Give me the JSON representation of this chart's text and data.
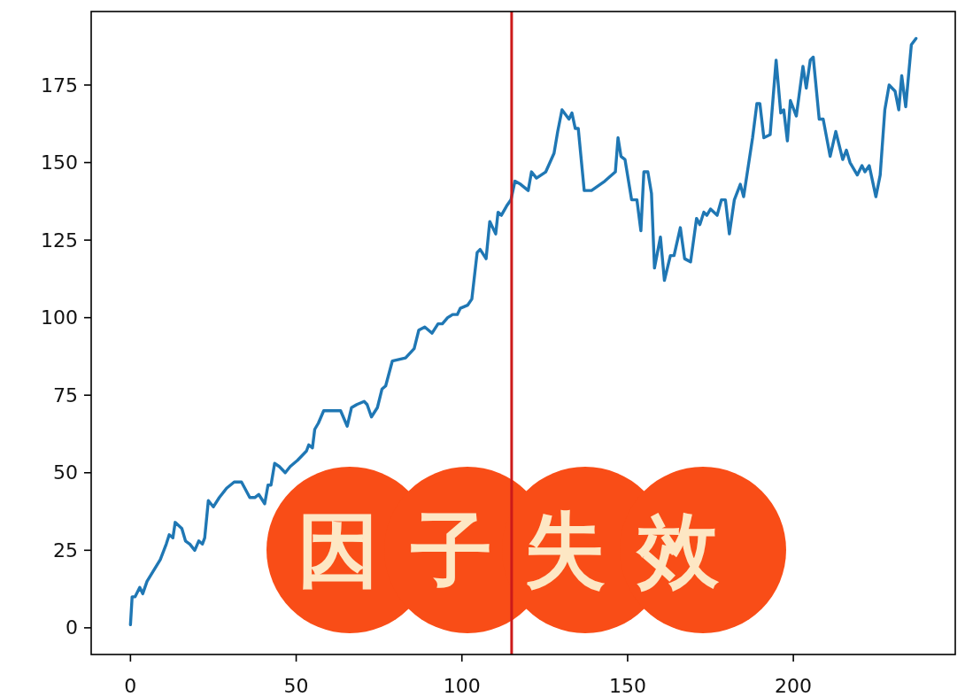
{
  "chart_data": {
    "type": "line",
    "x": [
      0,
      0.5,
      1.4,
      2.8,
      3.7,
      5,
      9,
      10.8,
      11.7,
      12.8,
      13.5,
      15.5,
      16.6,
      17.9,
      19.4,
      20.6,
      21.7,
      22.4,
      23.5,
      25,
      26.8,
      29,
      31.3,
      33.5,
      36,
      37.5,
      38.7,
      40.5,
      41.5,
      42.4,
      43.5,
      44.9,
      46.7,
      48.2,
      50.4,
      53.1,
      53.8,
      54.9,
      55.6,
      56.7,
      58.3,
      61.1,
      63.4,
      65.4,
      66.7,
      68.3,
      70.5,
      71.4,
      72.7,
      74.5,
      75.9,
      77,
      79,
      83,
      85.6,
      87,
      88.8,
      91,
      92.8,
      94.1,
      95.7,
      97.2,
      98.6,
      99.5,
      101.7,
      103,
      104.6,
      105.5,
      107.3,
      108.4,
      110.2,
      110.9,
      111.9,
      113.5,
      114.8,
      116,
      117.7,
      120,
      121,
      122.5,
      125.3,
      127.8,
      128.9,
      130.2,
      132.3,
      133.2,
      134.2,
      135.1,
      136.9,
      139.1,
      143.1,
      146.3,
      147.1,
      148,
      149.2,
      151.2,
      152.8,
      154,
      154.9,
      156.1,
      157.2,
      158.1,
      159.9,
      161.1,
      162.9,
      164,
      165.9,
      167.2,
      169,
      170.8,
      171.8,
      173,
      173.9,
      175,
      177,
      178.3,
      179.5,
      180.7,
      182.2,
      184,
      185,
      187.7,
      189,
      189.9,
      191.1,
      193,
      194.8,
      196.2,
      197.1,
      198.2,
      199.1,
      200.9,
      202.9,
      203.9,
      205.1,
      206,
      207.8,
      209,
      211.1,
      212.8,
      214.9,
      216,
      217.1,
      219.3,
      220.7,
      221.6,
      222.9,
      224.9,
      226.2,
      227.6,
      228.9,
      230.7,
      231.8,
      232.7,
      233.9,
      235.6,
      237
    ],
    "series": [
      {
        "color": "#1f77b4",
        "values": [
          1,
          10,
          10,
          13,
          11,
          15,
          22,
          27,
          30,
          29,
          34,
          32,
          28,
          27,
          25,
          28,
          27,
          29,
          41,
          39,
          42,
          45,
          47,
          47,
          42,
          42,
          43,
          40,
          46,
          46,
          53,
          52,
          50,
          52,
          54,
          57,
          59,
          58,
          64,
          66,
          70,
          70,
          70,
          65,
          71,
          72,
          73,
          72,
          68,
          71,
          77,
          78,
          86,
          87,
          90,
          96,
          97,
          95,
          98,
          98,
          100,
          101,
          101,
          103,
          104,
          106,
          121,
          122,
          119,
          131,
          127,
          134,
          133,
          136,
          138,
          144,
          143,
          141,
          147,
          145,
          147,
          153,
          160,
          167,
          164,
          166,
          161,
          161,
          141,
          141,
          144,
          147,
          158,
          152,
          151,
          138,
          138,
          128,
          147,
          147,
          140,
          116,
          126,
          112,
          120,
          120,
          129,
          119,
          118,
          132,
          130,
          134,
          133,
          135,
          133,
          138,
          138,
          127,
          138,
          143,
          139,
          158,
          169,
          169,
          158,
          159,
          183,
          166,
          167,
          157,
          170,
          165,
          181,
          174,
          183,
          184,
          164,
          164,
          152,
          160,
          151,
          154,
          150,
          146,
          149,
          147,
          149,
          139,
          146,
          167,
          175,
          173,
          167,
          178,
          168,
          188,
          190
        ]
      }
    ],
    "xlim": [
      -11.85,
      248.85
    ],
    "ylim": [
      -8.6,
      198.7
    ],
    "xticks": [
      0,
      50,
      100,
      150,
      200
    ],
    "yticks": [
      0,
      25,
      50,
      75,
      100,
      125,
      150,
      175
    ],
    "line_style": "solid",
    "ref_lines": [
      {
        "axis": "x",
        "value": 115,
        "color": "#cc1a1a"
      }
    ],
    "annotations": [
      "因子失效"
    ]
  }
}
